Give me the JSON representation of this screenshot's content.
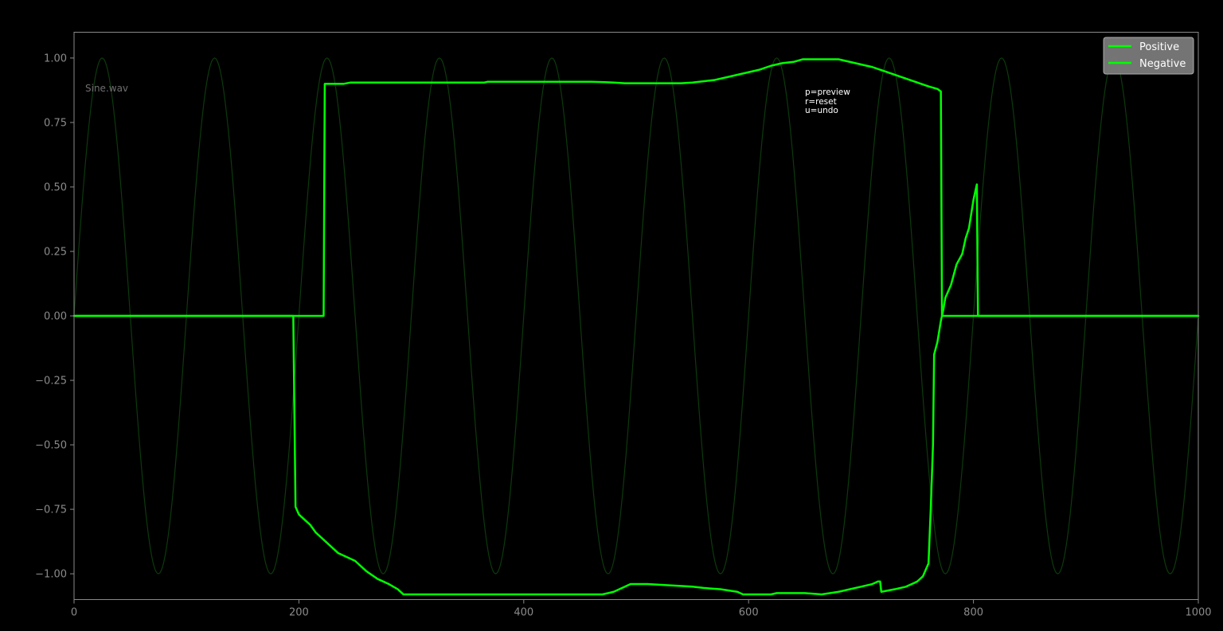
{
  "chart_data": {
    "type": "line",
    "title": "",
    "xlabel": "",
    "ylabel": "",
    "xlim": [
      0,
      1000
    ],
    "ylim": [
      -1.1,
      1.1
    ],
    "grid": false,
    "legend_position": "top-right",
    "background_color": "#000000",
    "axis_color": "#8a8a8a",
    "x_ticks": [
      0,
      200,
      400,
      600,
      800,
      1000
    ],
    "x_tick_labels": [
      "0",
      "200",
      "400",
      "600",
      "800",
      "1000"
    ],
    "y_ticks": [
      1.0,
      0.75,
      0.5,
      0.25,
      0.0,
      -0.25,
      -0.5,
      -0.75,
      -1.0
    ],
    "y_tick_labels": [
      "1.00",
      "0.75",
      "0.50",
      "0.25",
      "0.00",
      "−0.25",
      "−0.50",
      "−0.75",
      "−1.00"
    ],
    "file_label": "Sine.wav",
    "annotation_lines": [
      "p=preview",
      "r=reset",
      "u=undo"
    ],
    "background_wave": {
      "kind": "sine",
      "period": 100,
      "amplitude": 1.0,
      "color": "#0c3a0c"
    },
    "series": [
      {
        "name": "Positive",
        "color": "#00ff00",
        "points": [
          [
            0,
            0
          ],
          [
            222,
            0
          ],
          [
            223,
            0.9
          ],
          [
            230,
            0.9
          ],
          [
            240,
            0.9
          ],
          [
            246,
            0.905
          ],
          [
            300,
            0.905
          ],
          [
            365,
            0.905
          ],
          [
            368,
            0.908
          ],
          [
            400,
            0.908
          ],
          [
            460,
            0.908
          ],
          [
            480,
            0.905
          ],
          [
            490,
            0.902
          ],
          [
            540,
            0.902
          ],
          [
            550,
            0.905
          ],
          [
            560,
            0.91
          ],
          [
            570,
            0.915
          ],
          [
            580,
            0.925
          ],
          [
            590,
            0.935
          ],
          [
            600,
            0.945
          ],
          [
            610,
            0.955
          ],
          [
            620,
            0.97
          ],
          [
            630,
            0.98
          ],
          [
            640,
            0.985
          ],
          [
            648,
            0.995
          ],
          [
            660,
            0.995
          ],
          [
            680,
            0.995
          ],
          [
            690,
            0.985
          ],
          [
            700,
            0.975
          ],
          [
            710,
            0.965
          ],
          [
            720,
            0.95
          ],
          [
            730,
            0.935
          ],
          [
            740,
            0.92
          ],
          [
            750,
            0.905
          ],
          [
            760,
            0.89
          ],
          [
            768,
            0.88
          ],
          [
            771,
            0.87
          ],
          [
            772,
            0.0
          ],
          [
            800,
            0.0
          ],
          [
            1000,
            0.0
          ]
        ]
      },
      {
        "name": "Negative",
        "color": "#00ff00",
        "points": [
          [
            0,
            0
          ],
          [
            195,
            0
          ],
          [
            197,
            -0.74
          ],
          [
            200,
            -0.77
          ],
          [
            205,
            -0.79
          ],
          [
            210,
            -0.81
          ],
          [
            215,
            -0.84
          ],
          [
            220,
            -0.86
          ],
          [
            225,
            -0.88
          ],
          [
            230,
            -0.9
          ],
          [
            235,
            -0.92
          ],
          [
            240,
            -0.93
          ],
          [
            245,
            -0.94
          ],
          [
            250,
            -0.95
          ],
          [
            255,
            -0.97
          ],
          [
            260,
            -0.99
          ],
          [
            270,
            -1.02
          ],
          [
            280,
            -1.04
          ],
          [
            288,
            -1.06
          ],
          [
            293,
            -1.08
          ],
          [
            320,
            -1.08
          ],
          [
            400,
            -1.08
          ],
          [
            470,
            -1.08
          ],
          [
            480,
            -1.07
          ],
          [
            490,
            -1.05
          ],
          [
            495,
            -1.04
          ],
          [
            510,
            -1.04
          ],
          [
            530,
            -1.045
          ],
          [
            550,
            -1.05
          ],
          [
            560,
            -1.055
          ],
          [
            575,
            -1.06
          ],
          [
            590,
            -1.07
          ],
          [
            595,
            -1.08
          ],
          [
            620,
            -1.08
          ],
          [
            625,
            -1.075
          ],
          [
            650,
            -1.075
          ],
          [
            665,
            -1.08
          ],
          [
            680,
            -1.07
          ],
          [
            700,
            -1.05
          ],
          [
            710,
            -1.04
          ],
          [
            715,
            -1.03
          ],
          [
            717,
            -1.03
          ],
          [
            718,
            -1.07
          ],
          [
            730,
            -1.06
          ],
          [
            740,
            -1.05
          ],
          [
            750,
            -1.03
          ],
          [
            755,
            -1.01
          ],
          [
            760,
            -0.96
          ],
          [
            762,
            -0.75
          ],
          [
            764,
            -0.5
          ],
          [
            765,
            -0.15
          ],
          [
            768,
            -0.1
          ],
          [
            771,
            -0.02
          ],
          [
            773,
            0.02
          ],
          [
            775,
            0.07
          ],
          [
            780,
            0.12
          ],
          [
            785,
            0.2
          ],
          [
            790,
            0.24
          ],
          [
            793,
            0.3
          ],
          [
            796,
            0.34
          ],
          [
            800,
            0.45
          ],
          [
            803,
            0.51
          ],
          [
            804,
            0.0
          ],
          [
            805,
            0.0
          ],
          [
            1000,
            0.0
          ]
        ]
      }
    ]
  }
}
